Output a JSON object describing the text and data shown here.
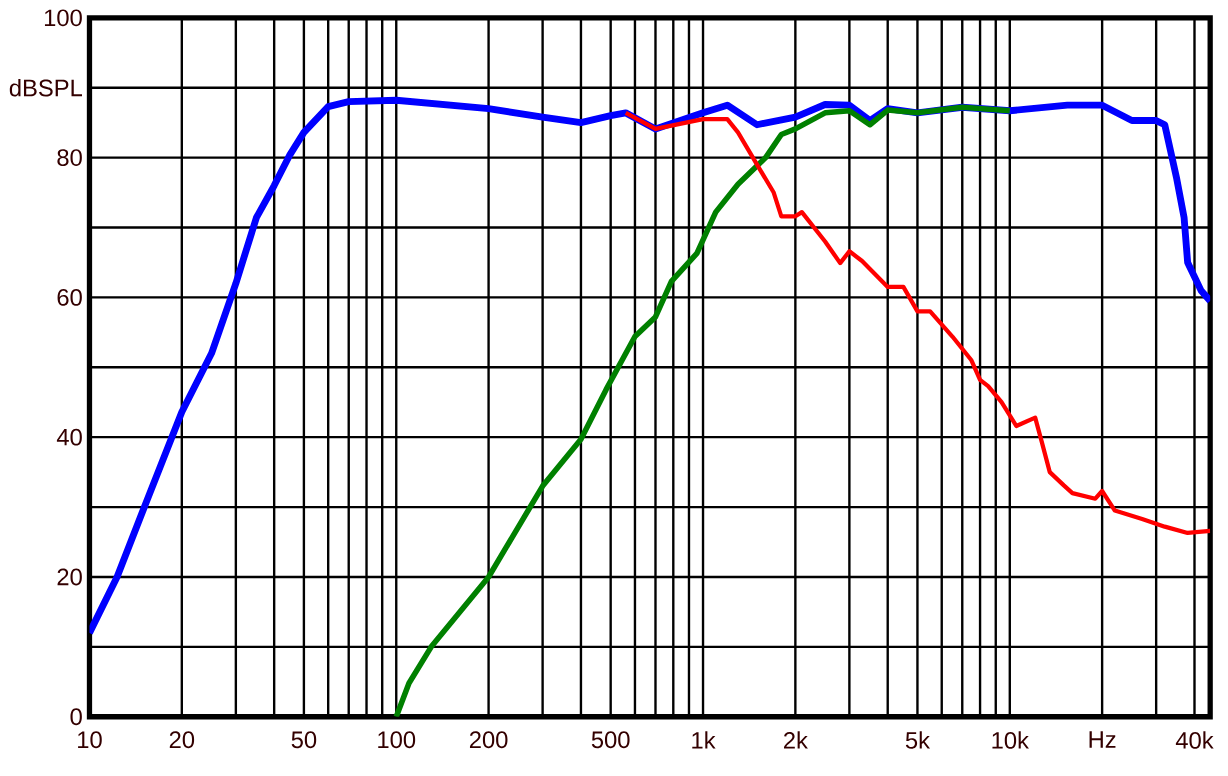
{
  "chart_data": {
    "type": "line",
    "log": "x",
    "grid": true,
    "xlim": [
      10,
      45000
    ],
    "ylim": [
      0,
      100
    ],
    "xticks": [
      10,
      20,
      {
        "value": 30,
        "label": null
      },
      {
        "value": 40,
        "label": null
      },
      50,
      {
        "value": 60,
        "label": null
      },
      {
        "value": 70,
        "label": null
      },
      {
        "value": 80,
        "label": null
      },
      {
        "value": 90,
        "label": null
      },
      100,
      200,
      {
        "value": 300,
        "label": null
      },
      {
        "value": 400,
        "label": null
      },
      500,
      {
        "value": 600,
        "label": null
      },
      {
        "value": 700,
        "label": null
      },
      {
        "value": 800,
        "label": null
      },
      {
        "value": 900,
        "label": null
      },
      {
        "value": 1000,
        "label": "1k"
      },
      {
        "value": 2000,
        "label": "2k"
      },
      {
        "value": 3000,
        "label": null
      },
      {
        "value": 4000,
        "label": null
      },
      {
        "value": 5000,
        "label": "5k"
      },
      {
        "value": 6000,
        "label": null
      },
      {
        "value": 7000,
        "label": null
      },
      {
        "value": 8000,
        "label": null
      },
      {
        "value": 9000,
        "label": null
      },
      {
        "value": 10000,
        "label": "10k"
      },
      {
        "value": 20000,
        "label": "Hz"
      },
      {
        "value": 30000,
        "label": null
      },
      {
        "value": 40000,
        "label": "40k"
      }
    ],
    "yticks": [
      0,
      {
        "value": 10,
        "label": null
      },
      20,
      {
        "value": 30,
        "label": null
      },
      40,
      {
        "value": 50,
        "label": null
      },
      60,
      {
        "value": 70,
        "label": null
      },
      80,
      {
        "value": 90,
        "label": "dBSPL"
      },
      100
    ],
    "series": [
      {
        "color": "#0000ff",
        "x": [
          10,
          12.3,
          15,
          20,
          25,
          30,
          35,
          40,
          45,
          50,
          60,
          70,
          100,
          200,
          300,
          400,
          500,
          560,
          700,
          1000,
          1200,
          1500,
          2000,
          2500,
          3000,
          3500,
          4000,
          5000,
          7000,
          10000,
          15400,
          20000,
          25000,
          30000,
          32000,
          35000,
          37000,
          38000,
          42000,
          45000
        ],
        "values": [
          12,
          20,
          29.7,
          43.6,
          52,
          62,
          71.4,
          76,
          80.4,
          83.6,
          87.3,
          88,
          88.2,
          87,
          85.8,
          85,
          86,
          86.4,
          84.1,
          86.4,
          87.5,
          84.7,
          85.8,
          87.6,
          87.5,
          85.3,
          87,
          86.4,
          87.2,
          86.7,
          87.5,
          87.5,
          85.3,
          85.3,
          84.7,
          77,
          71.4,
          65,
          61,
          59.5
        ]
      },
      {
        "color": "#008000",
        "x": [
          100,
          110,
          130,
          200,
          300,
          400,
          483,
          600,
          700,
          789,
          955,
          1100,
          1300,
          1600,
          1800,
          2000,
          2500,
          3000,
          3500,
          4000,
          5000,
          7000,
          10000
        ],
        "values": [
          0,
          4.8,
          10,
          20,
          33,
          39.7,
          46.8,
          54.4,
          57.2,
          62.3,
          66.3,
          72.2,
          76.2,
          80,
          83.3,
          84.1,
          86.4,
          86.7,
          84.7,
          86.8,
          86.4,
          87.2,
          86.7
        ]
      },
      {
        "color": "#ff0000",
        "x": [
          560,
          700,
          1000,
          1200,
          1300,
          1500,
          1700,
          1800,
          2000,
          2100,
          2500,
          2800,
          3000,
          3300,
          4000,
          4500,
          5000,
          5500,
          6500,
          7500,
          8000,
          8500,
          9400,
          10500,
          12100,
          12700,
          13500,
          15000,
          16000,
          19000,
          20000,
          22000,
          27000,
          32000,
          38000,
          45000
        ],
        "values": [
          86.4,
          84.1,
          85.5,
          85.5,
          83.6,
          79,
          75,
          71.6,
          71.6,
          72.2,
          68,
          64.9,
          66.6,
          65.2,
          61.5,
          61.5,
          58,
          58,
          54.4,
          51,
          48.2,
          47.3,
          45,
          41.6,
          42.8,
          39.4,
          35,
          33.1,
          32,
          31.2,
          32.3,
          29.5,
          28.3,
          27.2,
          26.3,
          26.6
        ]
      }
    ]
  }
}
